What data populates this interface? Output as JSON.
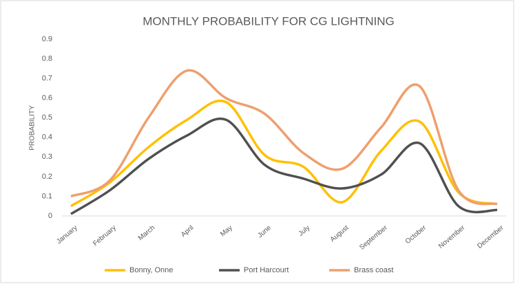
{
  "chart_data": {
    "type": "line",
    "title": "MONTHLY PROBABILITY FOR CG LIGHTNING",
    "y_label": "PROBABILITY",
    "categories": [
      "January",
      "February",
      "March",
      "April",
      "May",
      "June",
      "July",
      "August",
      "September",
      "October",
      "November",
      "December"
    ],
    "series": [
      {
        "name": "Bonny, Onne",
        "color": "#FFC000",
        "values": [
          0.05,
          0.17,
          0.35,
          0.49,
          0.58,
          0.31,
          0.25,
          0.07,
          0.33,
          0.48,
          0.12,
          0.06
        ]
      },
      {
        "name": "Port Harcourt",
        "color": "#505050",
        "values": [
          0.01,
          0.13,
          0.29,
          0.41,
          0.49,
          0.26,
          0.19,
          0.14,
          0.21,
          0.37,
          0.05,
          0.03
        ]
      },
      {
        "name": "Brass coast",
        "color": "#EE9F6E",
        "values": [
          0.1,
          0.18,
          0.5,
          0.74,
          0.6,
          0.52,
          0.32,
          0.24,
          0.45,
          0.66,
          0.13,
          0.06
        ]
      }
    ],
    "ylim": [
      0,
      0.9
    ],
    "yticks": [
      0,
      0.1,
      0.2,
      0.3,
      0.4,
      0.5,
      0.6,
      0.7,
      0.8,
      0.9
    ],
    "grid": false,
    "legend": "bottom",
    "smooth": true
  }
}
